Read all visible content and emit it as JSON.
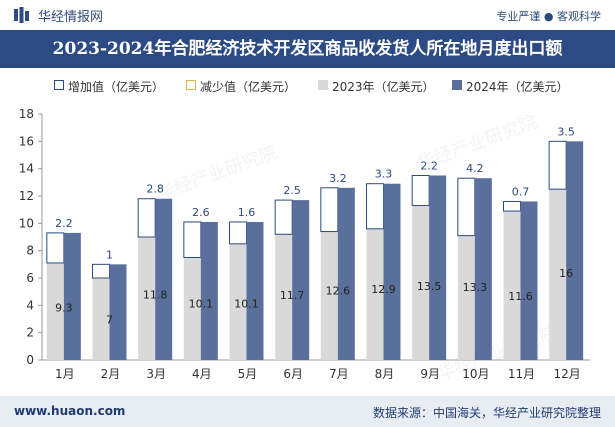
{
  "header": {
    "brand": "华经情报网",
    "slogan": "专业严谨 ● 客观科学",
    "title": "2023-2024年合肥经济技术开发区商品收发货人所在地月度出口额"
  },
  "legend": [
    {
      "label": "增加值（亿美元）",
      "color": "#ffffff",
      "border": "#2c4a83"
    },
    {
      "label": "减少值（亿美元）",
      "color": "#ffffff",
      "border": "#e0b24a"
    },
    {
      "label": "2023年（亿美元）",
      "color": "#d9d9d9",
      "border": "#d9d9d9"
    },
    {
      "label": "2024年（亿美元）",
      "color": "#5b6f9c",
      "border": "#5b6f9c"
    }
  ],
  "footer": {
    "website": "www.huaon.com",
    "source": "数据来源：中国海关，华经产业研究院整理"
  },
  "watermark": "华经产业研究院",
  "chart_data": {
    "type": "bar",
    "categories": [
      "1月",
      "2月",
      "3月",
      "4月",
      "5月",
      "6月",
      "7月",
      "8月",
      "9月",
      "10月",
      "11月",
      "12月"
    ],
    "series": [
      {
        "name": "2023年（亿美元）",
        "values": [
          7.1,
          6.0,
          9.0,
          7.5,
          8.5,
          9.2,
          9.4,
          9.6,
          11.3,
          9.1,
          10.9,
          12.5
        ],
        "color": "#d9d9d9"
      },
      {
        "name": "2024年（亿美元）",
        "values": [
          9.3,
          7,
          11.8,
          10.1,
          10.1,
          11.7,
          12.6,
          12.9,
          13.5,
          13.3,
          11.6,
          16
        ],
        "color": "#5b6f9c"
      },
      {
        "name": "增加值（亿美元）",
        "values": [
          2.2,
          1,
          2.8,
          2.6,
          1.6,
          2.5,
          3.2,
          3.3,
          2.2,
          4.2,
          0.7,
          3.5
        ],
        "color": "#ffffff"
      }
    ],
    "y_ticks": [
      "0",
      "2",
      "4",
      "6",
      "8",
      "10",
      "12",
      "14",
      "16",
      "18"
    ],
    "ylim": [
      0,
      18
    ],
    "grid": false
  }
}
